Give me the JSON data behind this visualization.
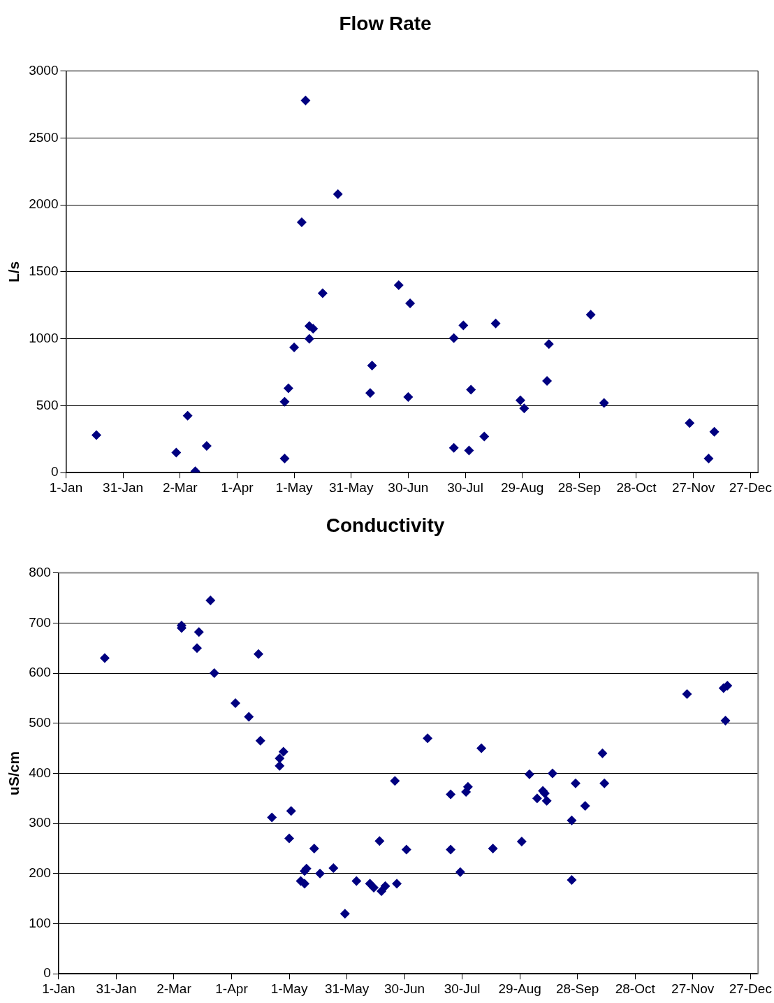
{
  "chart_data": [
    {
      "type": "scatter",
      "title": "Flow Rate",
      "ylabel": "L/s",
      "marker": "diamond",
      "grid": "y",
      "xlim": [
        "--01-01",
        "--12-31"
      ],
      "ylim": [
        0,
        3000
      ],
      "xticks": [
        {
          "value": "--01-01",
          "label": "1-Jan"
        },
        {
          "value": "--01-31",
          "label": "31-Jan"
        },
        {
          "value": "--03-02",
          "label": "2-Mar"
        },
        {
          "value": "--04-01",
          "label": "1-Apr"
        },
        {
          "value": "--05-01",
          "label": "1-May"
        },
        {
          "value": "--05-31",
          "label": "31-May"
        },
        {
          "value": "--06-30",
          "label": "30-Jun"
        },
        {
          "value": "--07-30",
          "label": "30-Jul"
        },
        {
          "value": "--08-29",
          "label": "29-Aug"
        },
        {
          "value": "--09-28",
          "label": "28-Sep"
        },
        {
          "value": "--10-28",
          "label": "28-Oct"
        },
        {
          "value": "--11-27",
          "label": "27-Nov"
        },
        {
          "value": "--12-27",
          "label": "27-Dec"
        }
      ],
      "yticks": [
        0,
        500,
        1000,
        1500,
        2000,
        2500,
        3000
      ],
      "series": [
        {
          "color": "#000080",
          "x": [
            "--01-17",
            "--02-28",
            "--03-06",
            "--03-10",
            "--03-16",
            "--04-26",
            "--04-26",
            "--04-28",
            "--05-01",
            "--05-05",
            "--05-07",
            "--05-09",
            "--05-09",
            "--05-11",
            "--05-16",
            "--05-24",
            "--06-10",
            "--06-11",
            "--06-25",
            "--06-30",
            "--07-01",
            "--07-24",
            "--07-24",
            "--07-29",
            "--08-01",
            "--08-02",
            "--08-09",
            "--08-15",
            "--08-28",
            "--08-30",
            "--09-11",
            "--09-12",
            "--10-04",
            "--10-11",
            "--11-25",
            "--12-05",
            "--12-08"
          ],
          "values": [
            280,
            150,
            425,
            10,
            200,
            530,
            105,
            630,
            935,
            1870,
            2780,
            1000,
            1095,
            1075,
            1340,
            2080,
            595,
            800,
            1400,
            565,
            1265,
            1005,
            185,
            1100,
            165,
            620,
            270,
            1115,
            540,
            480,
            685,
            960,
            1180,
            520,
            370,
            105,
            305
          ]
        }
      ]
    },
    {
      "type": "scatter",
      "title": "Conductivity",
      "ylabel": "uS/cm",
      "marker": "diamond",
      "grid": "y",
      "xlim": [
        "--01-01",
        "--12-31"
      ],
      "ylim": [
        0,
        800
      ],
      "xticks": [
        {
          "value": "--01-01",
          "label": "1-Jan"
        },
        {
          "value": "--01-31",
          "label": "31-Jan"
        },
        {
          "value": "--03-02",
          "label": "2-Mar"
        },
        {
          "value": "--04-01",
          "label": "1-Apr"
        },
        {
          "value": "--05-01",
          "label": "1-May"
        },
        {
          "value": "--05-31",
          "label": "31-May"
        },
        {
          "value": "--06-30",
          "label": "30-Jun"
        },
        {
          "value": "--07-30",
          "label": "30-Jul"
        },
        {
          "value": "--08-29",
          "label": "29-Aug"
        },
        {
          "value": "--09-28",
          "label": "28-Sep"
        },
        {
          "value": "--10-28",
          "label": "28-Oct"
        },
        {
          "value": "--11-27",
          "label": "27-Nov"
        },
        {
          "value": "--12-27",
          "label": "27-Dec"
        }
      ],
      "yticks": [
        0,
        100,
        200,
        300,
        400,
        500,
        600,
        700,
        800
      ],
      "series": [
        {
          "color": "#000080",
          "x": [
            "--01-25",
            "--03-06",
            "--03-06",
            "--03-15",
            "--03-14",
            "--03-21",
            "--03-23",
            "--04-03",
            "--04-10",
            "--04-16",
            "--04-15",
            "--04-22",
            "--04-26",
            "--04-26",
            "--04-28",
            "--05-01",
            "--05-02",
            "--05-07",
            "--05-09",
            "--05-09",
            "--05-10",
            "--05-14",
            "--05-17",
            "--05-24",
            "--05-30",
            "--06-05",
            "--06-12",
            "--06-14",
            "--06-17",
            "--06-18",
            "--06-20",
            "--06-25",
            "--06-26",
            "--07-01",
            "--07-12",
            "--07-24",
            "--07-24",
            "--07-29",
            "--08-01",
            "--08-02",
            "--08-09",
            "--08-15",
            "--08-30",
            "--09-03",
            "--09-07",
            "--09-10",
            "--09-11",
            "--09-12",
            "--09-15",
            "--09-25",
            "--09-25",
            "--09-27",
            "--10-02",
            "--10-11",
            "--10-12",
            "--11-24",
            "--12-13",
            "--12-15",
            "--12-14"
          ],
          "values": [
            630,
            695,
            690,
            682,
            650,
            745,
            600,
            540,
            513,
            465,
            638,
            312,
            430,
            415,
            443,
            270,
            325,
            185,
            180,
            205,
            210,
            250,
            200,
            211,
            120,
            185,
            180,
            172,
            265,
            165,
            175,
            385,
            180,
            248,
            470,
            358,
            248,
            203,
            363,
            373,
            450,
            250,
            264,
            398,
            350,
            365,
            360,
            345,
            400,
            306,
            187,
            380,
            335,
            440,
            380,
            558,
            570,
            575,
            505
          ]
        }
      ]
    }
  ]
}
